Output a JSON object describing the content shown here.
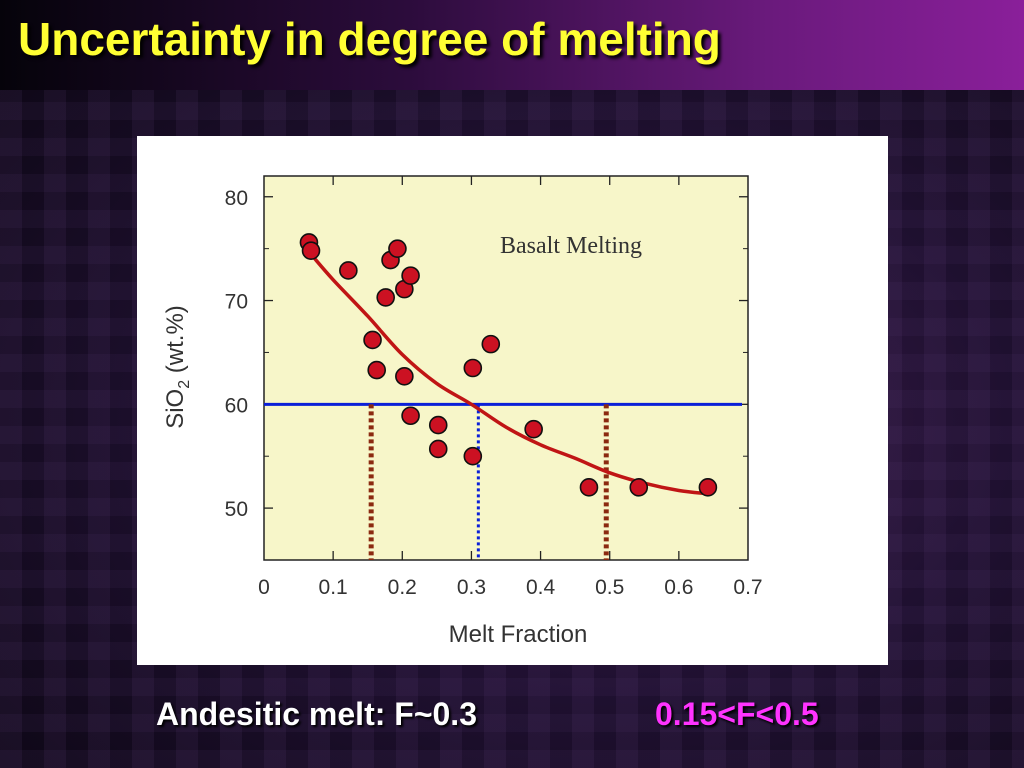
{
  "slide": {
    "title": "Uncertainty in degree of melting",
    "caption_left": "Andesitic melt: F~0.3",
    "caption_right": "0.15<F<0.5"
  },
  "colors": {
    "title": "#ffff33",
    "caption_right": "#ff33ff",
    "plot_bg": "#f7f6c9",
    "marker_fill": "#cc1122",
    "fit_curve": "#c01515",
    "reference_line": "#0a1fd8",
    "bracket_lines": "#8b2a10",
    "estimate_line": "#0a1fd8"
  },
  "chart_data": {
    "type": "scatter",
    "annotation": "Basalt Melting",
    "xlabel": "Melt Fraction",
    "ylabel_main": "SiO",
    "ylabel_sub": "2",
    "ylabel_tail": " (wt.%)",
    "xlim": [
      0,
      0.7
    ],
    "ylim": [
      45,
      82
    ],
    "x_ticks": [
      0,
      0.1,
      0.2,
      0.3,
      0.4,
      0.5,
      0.6,
      0.7
    ],
    "x_tick_labels": [
      "0",
      "0.1",
      "0.2",
      "0.3",
      "0.4",
      "0.5",
      "0.6",
      "0.7"
    ],
    "y_ticks": [
      50,
      60,
      70,
      80
    ],
    "y_tick_labels": [
      "50",
      "60",
      "70",
      "80"
    ],
    "grid": false,
    "points": [
      {
        "x": 0.065,
        "y": 75.6
      },
      {
        "x": 0.068,
        "y": 74.8
      },
      {
        "x": 0.122,
        "y": 72.9
      },
      {
        "x": 0.176,
        "y": 70.3
      },
      {
        "x": 0.183,
        "y": 73.9
      },
      {
        "x": 0.193,
        "y": 75.0
      },
      {
        "x": 0.203,
        "y": 71.1
      },
      {
        "x": 0.212,
        "y": 72.4
      },
      {
        "x": 0.157,
        "y": 66.2
      },
      {
        "x": 0.163,
        "y": 63.3
      },
      {
        "x": 0.203,
        "y": 62.7
      },
      {
        "x": 0.212,
        "y": 58.9
      },
      {
        "x": 0.252,
        "y": 55.7
      },
      {
        "x": 0.252,
        "y": 58.0
      },
      {
        "x": 0.302,
        "y": 63.5
      },
      {
        "x": 0.302,
        "y": 55.0
      },
      {
        "x": 0.328,
        "y": 65.8
      },
      {
        "x": 0.39,
        "y": 57.6
      },
      {
        "x": 0.47,
        "y": 52.0
      },
      {
        "x": 0.542,
        "y": 52.0
      },
      {
        "x": 0.642,
        "y": 52.0
      }
    ],
    "fit_curve": {
      "x": [
        0.07,
        0.1,
        0.15,
        0.2,
        0.25,
        0.3,
        0.35,
        0.4,
        0.45,
        0.5,
        0.55,
        0.6,
        0.64
      ],
      "y": [
        74.3,
        72.0,
        68.5,
        64.8,
        62.0,
        60.0,
        57.8,
        56.1,
        54.8,
        53.4,
        52.4,
        51.7,
        51.4
      ]
    },
    "reference_line_y": 60,
    "bracket_lines_x": [
      0.155,
      0.495
    ],
    "estimate_line_x": 0.31
  }
}
